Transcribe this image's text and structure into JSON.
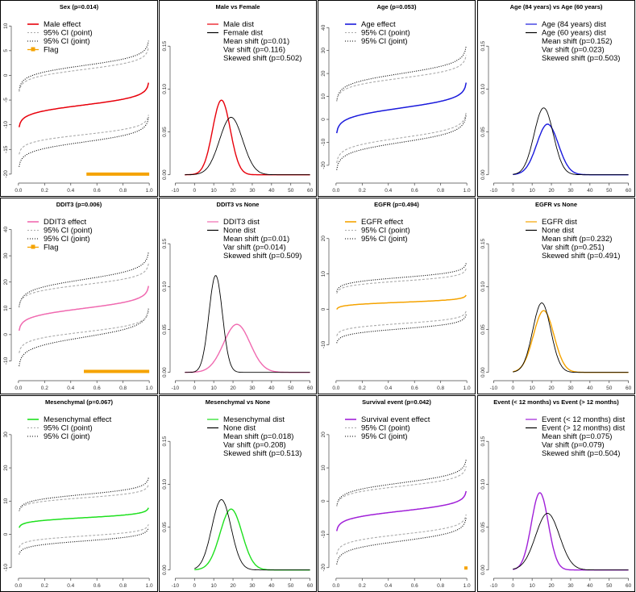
{
  "chart_data": [
    {
      "type": "line",
      "kind": "effect",
      "title": "Sex (p=0.014)",
      "ylim": [
        -21,
        12
      ],
      "yticks": [
        -20,
        -15,
        -10,
        -5,
        0,
        5,
        10
      ],
      "xlim": [
        -0.03,
        1.03
      ],
      "xticks": [
        "0.0",
        "0.2",
        "0.4",
        "0.6",
        "0.8",
        "1.0"
      ],
      "grid": false,
      "legend_position": "top-left",
      "legend": [
        "Male effect",
        "95% CI (point)",
        "95% CI (joint)",
        "Flag"
      ],
      "effect_color": "#e8000b",
      "effect": {
        "center": -6.0,
        "half_span": 4.5
      },
      "ci_point": {
        "upper_center": 1.2,
        "upper_half_span": 4.5,
        "lower_center": -12.0,
        "lower_half_span": 4.0
      },
      "ci_joint": {
        "upper_center": 2.0,
        "upper_half_span": 5.0,
        "lower_center": -13.5,
        "lower_half_span": 5.0
      },
      "flag": {
        "x_start": 0.52,
        "x_end": 1.0,
        "y": -20
      }
    },
    {
      "type": "line",
      "kind": "density",
      "title": "Male vs Female",
      "ylim": [
        -0.005,
        0.185
      ],
      "yticks": [
        "0.00",
        "0.05",
        "0.10",
        "0.15"
      ],
      "xlim": [
        -11,
        61
      ],
      "xticks": [
        "-10",
        "0",
        "10",
        "20",
        "30",
        "40",
        "50",
        "60"
      ],
      "grid": false,
      "legend_position": "top-center",
      "legend": [
        "Male dist",
        "Female dist"
      ],
      "stats": [
        "Mean shift (p=0.01)",
        "Var shift (p=0.116)",
        "Skewed shift (p=0.502)"
      ],
      "series": [
        {
          "name": "Male dist",
          "color": "#e8000b",
          "mean": 14,
          "sd": 4.6,
          "peak": 0.087,
          "x_range": [
            -5,
            60
          ]
        },
        {
          "name": "Female dist",
          "color": "#000000",
          "mean": 19,
          "sd": 6.0,
          "peak": 0.067,
          "x_range": [
            -5,
            60
          ]
        }
      ]
    },
    {
      "type": "line",
      "kind": "effect",
      "title": "Age (p=0.053)",
      "ylim": [
        -26,
        45
      ],
      "yticks": [
        -20,
        -10,
        0,
        10,
        20,
        30,
        40
      ],
      "xlim": [
        -0.03,
        1.03
      ],
      "xticks": [
        "0.0",
        "0.2",
        "0.4",
        "0.6",
        "0.8",
        "1.0"
      ],
      "grid": false,
      "legend_position": "top-left",
      "legend": [
        "Age effect",
        "95% CI (point)",
        "95% CI (joint)"
      ],
      "effect_color": "#1a1adc",
      "effect": {
        "center": 5.0,
        "half_span": 11.0
      },
      "ci_point": {
        "upper_center": 18.0,
        "upper_half_span": 10.0,
        "lower_center": -8.0,
        "lower_half_span": 11.0
      },
      "ci_joint": {
        "upper_center": 20.0,
        "upper_half_span": 12.0,
        "lower_center": -10.0,
        "lower_half_span": 12.0
      }
    },
    {
      "type": "line",
      "kind": "density",
      "title": "Age (84 years) vs Age (60 years)",
      "ylim": [
        -0.005,
        0.185
      ],
      "yticks": [
        "0.00",
        "0.05",
        "0.10",
        "0.15"
      ],
      "xlim": [
        -11,
        61
      ],
      "xticks": [
        "-10",
        "0",
        "10",
        "20",
        "30",
        "40",
        "50",
        "60"
      ],
      "grid": false,
      "legend_position": "top-center",
      "legend": [
        "Age (84 years) dist",
        "Age (60 years) dist"
      ],
      "stats": [
        "Mean shift (p=0.152)",
        "Var shift (p=0.023)",
        "Skewed shift (p=0.503)"
      ],
      "series": [
        {
          "name": "Age (84 years) dist",
          "color": "#1a1adc",
          "mean": 18,
          "sd": 5.6,
          "peak": 0.059,
          "x_range": [
            0,
            60
          ]
        },
        {
          "name": "Age (60 years) dist",
          "color": "#000000",
          "mean": 16,
          "sd": 5.0,
          "peak": 0.078,
          "x_range": [
            0,
            60
          ]
        }
      ]
    },
    {
      "type": "line",
      "kind": "effect",
      "title": "DDIT3 (p=0.006)",
      "ylim": [
        -16,
        46
      ],
      "yticks": [
        -10,
        0,
        10,
        20,
        30,
        40
      ],
      "xlim": [
        -0.03,
        1.03
      ],
      "xticks": [
        "0.0",
        "0.2",
        "0.4",
        "0.6",
        "0.8",
        "1.0"
      ],
      "grid": false,
      "legend_position": "top-left",
      "legend": [
        "DDIT3 effect",
        "95% CI (point)",
        "95% CI (joint)",
        "Flag"
      ],
      "effect_color": "#f06ab0",
      "effect": {
        "center": 10.0,
        "half_span": 8.5
      },
      "ci_point": {
        "upper_center": 19.0,
        "upper_half_span": 8.0,
        "lower_center": 1.0,
        "lower_half_span": 8.0
      },
      "ci_joint": {
        "upper_center": 21.0,
        "upper_half_span": 10.5,
        "lower_center": -1.0,
        "lower_half_span": 11.0
      },
      "flag": {
        "x_start": 0.5,
        "x_end": 1.0,
        "y": -14
      }
    },
    {
      "type": "line",
      "kind": "density",
      "title": "DDIT3 vs None",
      "ylim": [
        -0.005,
        0.185
      ],
      "yticks": [
        "0.00",
        "0.05",
        "0.10",
        "0.15"
      ],
      "xlim": [
        -11,
        61
      ],
      "xticks": [
        "-10",
        "0",
        "10",
        "20",
        "30",
        "40",
        "50",
        "60"
      ],
      "grid": false,
      "legend_position": "top-center",
      "legend": [
        "DDIT3 dist",
        "None dist"
      ],
      "stats": [
        "Mean shift (p=0.01)",
        "Var shift (p=0.014)",
        "Skewed shift (p=0.509)"
      ],
      "series": [
        {
          "name": "DDIT3 dist",
          "color": "#f06ab0",
          "mean": 22,
          "sd": 6.9,
          "peak": 0.056,
          "x_range": [
            -5,
            60
          ]
        },
        {
          "name": "None dist",
          "color": "#000000",
          "mean": 11,
          "sd": 3.5,
          "peak": 0.113,
          "x_range": [
            -5,
            60
          ]
        }
      ]
    },
    {
      "type": "line",
      "kind": "effect",
      "title": "EGFR (p=0.494)",
      "ylim": [
        -19,
        27
      ],
      "yticks": [
        -10,
        0,
        10,
        20
      ],
      "xlim": [
        -0.03,
        1.03
      ],
      "xticks": [
        "0.0",
        "0.2",
        "0.4",
        "0.6",
        "0.8",
        "1.0"
      ],
      "grid": false,
      "legend_position": "top-left",
      "legend": [
        "EGFR effect",
        "95% CI (point)",
        "95% CI (joint)"
      ],
      "effect_color": "#f5a300",
      "effect": {
        "center": 2.0,
        "half_span": 2.0
      },
      "ci_point": {
        "upper_center": 8.0,
        "upper_half_span": 3.5,
        "lower_center": -4.0,
        "lower_half_span": 3.5
      },
      "ci_joint": {
        "upper_center": 9.0,
        "upper_half_span": 4.0,
        "lower_center": -5.5,
        "lower_half_span": 4.0
      }
    },
    {
      "type": "line",
      "kind": "density",
      "title": "EGFR vs None",
      "ylim": [
        -0.005,
        0.185
      ],
      "yticks": [
        "0.00",
        "0.05",
        "0.10",
        "0.15"
      ],
      "xlim": [
        -11,
        61
      ],
      "xticks": [
        "-10",
        "0",
        "10",
        "20",
        "30",
        "40",
        "50",
        "60"
      ],
      "grid": false,
      "legend_position": "top-center",
      "legend": [
        "EGFR dist",
        "None dist"
      ],
      "stats": [
        "Mean shift (p=0.232)",
        "Var shift (p=0.251)",
        "Skewed shift (p=0.491)"
      ],
      "series": [
        {
          "name": "EGFR dist",
          "color": "#f5a300",
          "mean": 16,
          "sd": 5.3,
          "peak": 0.072,
          "x_range": [
            0,
            60
          ]
        },
        {
          "name": "None dist",
          "color": "#000000",
          "mean": 15,
          "sd": 4.7,
          "peak": 0.081,
          "x_range": [
            0,
            60
          ]
        }
      ]
    },
    {
      "type": "line",
      "kind": "effect",
      "title": "Mesenchymal (p=0.067)",
      "ylim": [
        -12,
        37
      ],
      "yticks": [
        -10,
        0,
        10,
        20,
        30
      ],
      "xlim": [
        -0.03,
        1.03
      ],
      "xticks": [
        "0.0",
        "0.2",
        "0.4",
        "0.6",
        "0.8",
        "1.0"
      ],
      "grid": false,
      "legend_position": "top-left",
      "legend": [
        "Mesenchymal effect",
        "95% CI (point)",
        "95% CI (joint)"
      ],
      "effect_color": "#1ee01e",
      "effect": {
        "center": 5.0,
        "half_span": 3.0
      },
      "ci_point": {
        "upper_center": 11.0,
        "upper_half_span": 4.0,
        "lower_center": -0.5,
        "lower_half_span": 3.5
      },
      "ci_joint": {
        "upper_center": 12.0,
        "upper_half_span": 5.0,
        "lower_center": -2.0,
        "lower_half_span": 4.0
      }
    },
    {
      "type": "line",
      "kind": "density",
      "title": "Mesenchymal vs None",
      "ylim": [
        -0.005,
        0.185
      ],
      "yticks": [
        "0.00",
        "0.05",
        "0.10",
        "0.15"
      ],
      "xlim": [
        -11,
        61
      ],
      "xticks": [
        "-10",
        "0",
        "10",
        "20",
        "30",
        "40",
        "50",
        "60"
      ],
      "grid": false,
      "legend_position": "top-center",
      "legend": [
        "Mesenchymal dist",
        "None dist"
      ],
      "stats": [
        "Mean shift (p=0.018)",
        "Var shift (p=0.208)",
        "Skewed shift (p=0.513)"
      ],
      "series": [
        {
          "name": "Mesenchymal dist",
          "color": "#1ee01e",
          "mean": 19,
          "sd": 5.7,
          "peak": 0.071,
          "x_range": [
            0,
            60
          ]
        },
        {
          "name": "None dist",
          "color": "#000000",
          "mean": 14,
          "sd": 5.0,
          "peak": 0.082,
          "x_range": [
            0,
            60
          ]
        }
      ]
    },
    {
      "type": "line",
      "kind": "effect",
      "title": "Survival event (p=0.042)",
      "ylim": [
        -22,
        27
      ],
      "yticks": [
        -20,
        -10,
        0,
        10,
        20
      ],
      "xlim": [
        -0.03,
        1.03
      ],
      "xticks": [
        "0.0",
        "0.2",
        "0.4",
        "0.6",
        "0.8",
        "1.0"
      ],
      "grid": false,
      "legend_position": "top-left",
      "legend": [
        "Survival event effect",
        "95% CI (point)",
        "95% CI (joint)"
      ],
      "effect_color": "#a020d8",
      "effect": {
        "center": -3.0,
        "half_span": 6.0
      },
      "ci_point": {
        "upper_center": 4.5,
        "upper_half_span": 6.0,
        "lower_center": -10.0,
        "lower_half_span": 6.0
      },
      "ci_joint": {
        "upper_center": 5.5,
        "upper_half_span": 7.0,
        "lower_center": -12.0,
        "lower_half_span": 7.0
      },
      "flag": {
        "x_start": 0.99,
        "x_end": 1.0,
        "y": -20
      }
    },
    {
      "type": "line",
      "kind": "density",
      "title": "Event (< 12 months) vs Event (> 12 months)",
      "ylim": [
        -0.005,
        0.185
      ],
      "yticks": [
        "0.00",
        "0.05",
        "0.10",
        "0.15"
      ],
      "xlim": [
        -11,
        61
      ],
      "xticks": [
        "-10",
        "0",
        "10",
        "20",
        "30",
        "40",
        "50",
        "60"
      ],
      "grid": false,
      "legend_position": "top-center",
      "legend": [
        "Event (< 12 months) dist",
        "Event (> 12 months) dist"
      ],
      "stats": [
        "Mean shift (p=0.075)",
        "Var shift (p=0.079)",
        "Skewed shift (p=0.504)"
      ],
      "series": [
        {
          "name": "Event (< 12 months) dist",
          "color": "#a020d8",
          "mean": 14,
          "sd": 4.4,
          "peak": 0.09,
          "x_range": [
            0,
            60
          ]
        },
        {
          "name": "Event (> 12 months) dist",
          "color": "#000000",
          "mean": 18,
          "sd": 6.2,
          "peak": 0.066,
          "x_range": [
            0,
            60
          ]
        }
      ]
    }
  ]
}
